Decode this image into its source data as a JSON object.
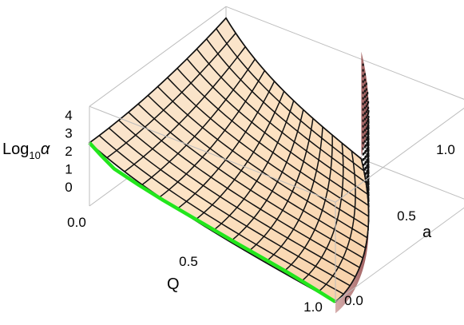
{
  "chart_data": {
    "type": "surface3d",
    "title": "",
    "axes": {
      "x": {
        "label": "Q",
        "range": [
          0,
          1
        ],
        "ticks": [
          "0.0",
          "0.5",
          "1.0"
        ]
      },
      "y": {
        "label": "a",
        "range": [
          0,
          1
        ],
        "ticks": [
          "0.0",
          "0.5",
          "1.0"
        ]
      },
      "z": {
        "label_main": "Log",
        "label_sub": "10",
        "label_sym": "α",
        "range": [
          0,
          4
        ],
        "ticks": [
          "0",
          "1",
          "2",
          "3",
          "4"
        ]
      }
    },
    "surface": {
      "name": "",
      "function": "z ≈ 3.3·(1−Q^1.6)^0.8 + 0.9·a² near Q=0, dropping steeply toward a boundary curve in (Q,a)",
      "grid_lines": 14,
      "sample_boundary_z_at_a0": [
        [
          0.0,
          3.3
        ],
        [
          0.05,
          2.8
        ],
        [
          0.2,
          2.0
        ],
        [
          0.5,
          1.2
        ],
        [
          0.8,
          0.5
        ],
        [
          1.0,
          0.0
        ]
      ]
    },
    "highlight_curve": {
      "color": "#22e61c",
      "description": "z(Q) at a = 0",
      "points": [
        [
          0.0,
          3.3
        ],
        [
          0.05,
          2.85
        ],
        [
          0.1,
          2.45
        ],
        [
          0.2,
          2.1
        ],
        [
          0.3,
          1.8
        ],
        [
          0.4,
          1.55
        ],
        [
          0.5,
          1.3
        ],
        [
          0.6,
          1.05
        ],
        [
          0.7,
          0.82
        ],
        [
          0.8,
          0.58
        ],
        [
          0.9,
          0.3
        ],
        [
          1.0,
          0.0
        ]
      ]
    },
    "boundary_wall": {
      "color": "#9b4a4a",
      "description": "vertical wall along the curve a_max(Q) where the surface terminates"
    },
    "grid": false,
    "box": true
  }
}
